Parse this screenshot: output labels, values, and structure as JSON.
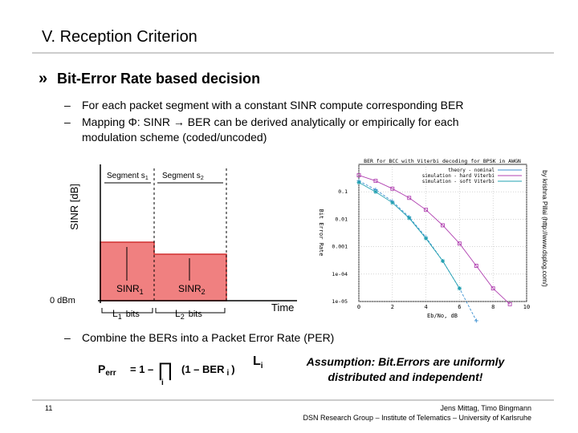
{
  "header": {
    "title": "V. Reception Criterion"
  },
  "bullet": "Bit-Error Rate based decision",
  "subbullets": [
    "For each packet segment with a constant SINR compute corresponding BER",
    "Mapping Φ: SINR → BER can be derived analytically or empirically for each",
    "modulation scheme (coded/uncoded)",
    "Combine the BERs into a Packet Error Rate (PER)"
  ],
  "sinr_diagram": {
    "y_label": "SINR [dB]",
    "zero_label": "0 dBm",
    "time_label": "Time",
    "segments": [
      {
        "label": "Segment s",
        "sub": "1",
        "sinr": "SINR",
        "sinr_sub": "1",
        "len": "L",
        "len_sub": "1",
        "unit": "bits"
      },
      {
        "label": "Segment s",
        "sub": "2",
        "sinr": "SINR",
        "sinr_sub": "2",
        "len": "L",
        "len_sub": "2",
        "unit": "bits"
      }
    ]
  },
  "ber_chart": {
    "type": "line",
    "title": "BER for BCC with Viterbi decoding for BPSK in AWGN",
    "x_label": "Eb/No, dB",
    "y_label": "Bit Error Rate",
    "credit": "by krishna Pillai (http://www.dsplog.com/)",
    "log_y": true,
    "grid": true,
    "legend": "upper right",
    "xlim": [
      0,
      10
    ],
    "xticks": [
      0,
      2,
      4,
      6,
      8,
      10
    ],
    "ylim": [
      1e-05,
      1
    ],
    "yticks": [
      {
        "value": 0.1,
        "label": "0.1"
      },
      {
        "value": 0.01,
        "label": "0.01"
      },
      {
        "value": 0.001,
        "label": "0.001"
      },
      {
        "value": 0.0001,
        "label": "1e-04"
      },
      {
        "value": 1e-05,
        "label": "1e-05"
      }
    ],
    "series": [
      {
        "name": "theory - nominal",
        "color": "#3a8fd0",
        "marker": "plus",
        "x": [
          0,
          1,
          2,
          3,
          4,
          5,
          6,
          7
        ],
        "values": [
          0.25,
          0.12,
          0.045,
          0.012,
          0.0022,
          0.0003,
          3e-05,
          2e-06
        ]
      },
      {
        "name": "simulation - hard Viterbi",
        "color": "#b040b0",
        "marker": "square",
        "x": [
          0,
          1,
          2,
          3,
          4,
          5,
          6,
          7,
          8,
          9
        ],
        "values": [
          0.4,
          0.25,
          0.13,
          0.06,
          0.022,
          0.006,
          0.0013,
          0.0002,
          3e-05,
          8e-06
        ]
      },
      {
        "name": "simulation - soft Viterbi",
        "color": "#20a0b0",
        "marker": "star",
        "x": [
          0,
          1,
          2,
          3,
          4,
          5,
          6
        ],
        "values": [
          0.22,
          0.1,
          0.04,
          0.011,
          0.002,
          0.0003,
          3e-05
        ]
      }
    ]
  },
  "formula": {
    "p": "P",
    "p_sub": "err",
    "eq": "= 1 –",
    "prod": "∏",
    "prod_sub": "i",
    "term": "(1 – BER",
    "term_sub": "i",
    "close": ")",
    "exp": "L",
    "exp_sub": "i"
  },
  "assumption": [
    "Assumption: Bit.Errors are uniformly",
    "distributed and independent!"
  ],
  "footer": {
    "page": "11",
    "authors": "Jens Mittag, Timo Bingmann",
    "group": "DSN Research Group – Institute of Telematics – University of Karlsruhe"
  }
}
